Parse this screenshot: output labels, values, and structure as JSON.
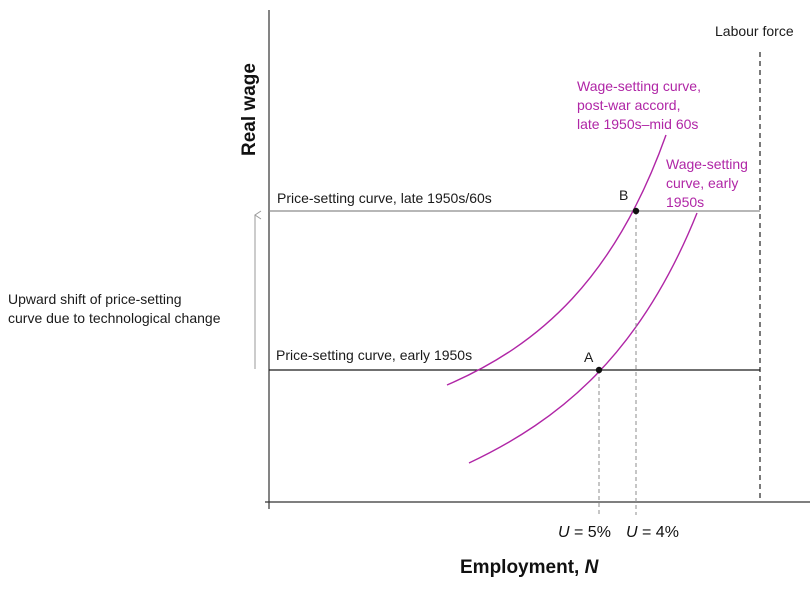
{
  "axes": {
    "y_label": "Real wage",
    "x_label_main": "Employment, ",
    "x_label_var": "N"
  },
  "labour_force": "Labour force",
  "price_setting": {
    "late": "Price-setting curve, late 1950s/60s",
    "early": "Price-setting curve, early 1950s"
  },
  "wage_setting": {
    "post_war": [
      "Wage-setting curve,",
      "post-war accord,",
      "late 1950s–mid 60s"
    ],
    "early": [
      "Wage-setting",
      "curve, early",
      "1950s"
    ]
  },
  "points": {
    "a": "A",
    "b": "B"
  },
  "unemployment": {
    "a_var": "U",
    "a_val": " = 5%",
    "b_var": "U",
    "b_val": " = 4%"
  },
  "shift_annotation": [
    "Upward shift of price-setting",
    "curve due to technological change"
  ],
  "colors": {
    "wage_setting": "#b026a6",
    "price_setting_late": "#8c8c8c",
    "price_setting_early": "#1a1a1a"
  }
}
